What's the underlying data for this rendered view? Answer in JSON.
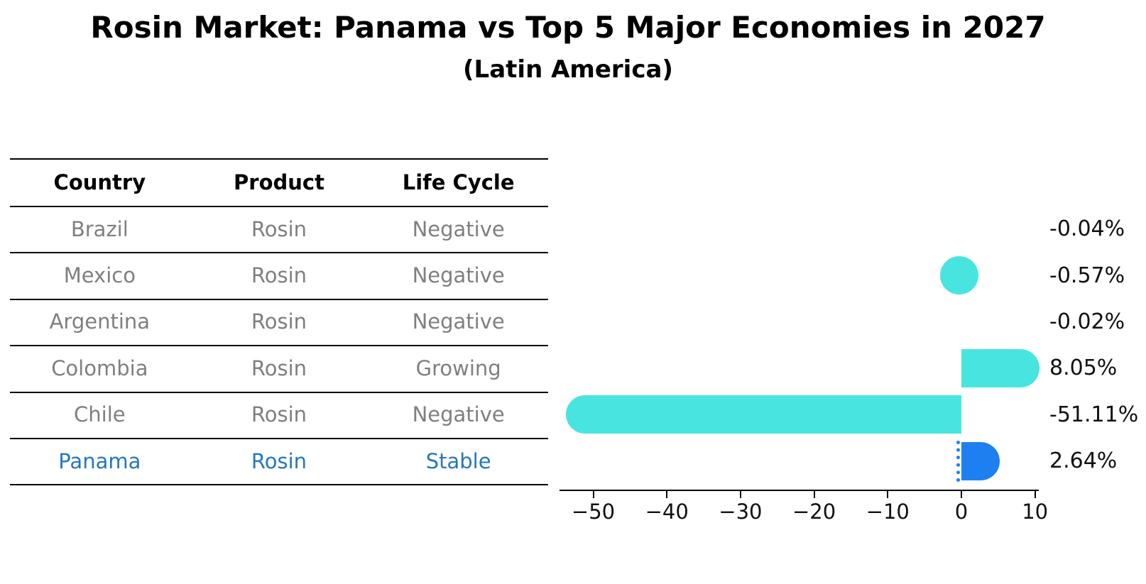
{
  "title": "Rosin Market: Panama vs Top 5 Major Economies in 2027",
  "subtitle": "(Latin America)",
  "table": {
    "headers": [
      "Country",
      "Product",
      "Life Cycle"
    ],
    "rows": [
      {
        "country": "Brazil",
        "product": "Rosin",
        "life_cycle": "Negative",
        "highlight": false
      },
      {
        "country": "Mexico",
        "product": "Rosin",
        "life_cycle": "Negative",
        "highlight": false
      },
      {
        "country": "Argentina",
        "product": "Rosin",
        "life_cycle": "Negative",
        "highlight": false
      },
      {
        "country": "Colombia",
        "product": "Rosin",
        "life_cycle": "Growing",
        "highlight": false
      },
      {
        "country": "Chile",
        "product": "Rosin",
        "life_cycle": "Negative",
        "highlight": false
      },
      {
        "country": "Panama",
        "product": "Rosin",
        "life_cycle": "Stable",
        "highlight": true
      }
    ]
  },
  "chart_data": {
    "type": "bar",
    "orientation": "horizontal",
    "categories": [
      "Brazil",
      "Mexico",
      "Argentina",
      "Colombia",
      "Chile",
      "Panama"
    ],
    "values": [
      -0.04,
      -0.57,
      -0.02,
      8.05,
      -51.11,
      2.64
    ],
    "value_labels": [
      "-0.04%",
      "-0.57%",
      "-0.02%",
      "8.05%",
      "-51.11%",
      "2.64%"
    ],
    "unit": "%",
    "xtick_labels": [
      "−50",
      "−40",
      "−30",
      "−20",
      "−10",
      "0",
      "10"
    ],
    "xtick_values": [
      -50,
      -40,
      -30,
      -20,
      -10,
      0,
      10
    ],
    "xlim": [
      -54.6,
      10.5
    ],
    "grid": false,
    "legend": "none",
    "bar_color": "#48e5e0",
    "highlight_color": "#1e80f0",
    "highlight_index": 5,
    "highlight_style": "dotted-outline",
    "bar_cap_style": "rounded-outer-end"
  },
  "colors": {
    "background": "#ffffff",
    "title_text": "#000000",
    "table_line": "#000000",
    "row_text": "#7f7f7f",
    "highlight_text": "#2578be",
    "value_text": "#111111",
    "axis": "#000000"
  }
}
